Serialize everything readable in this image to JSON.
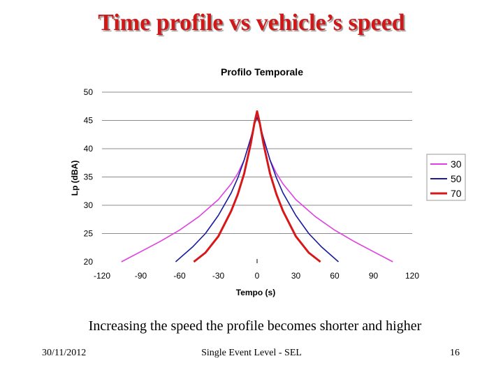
{
  "slide": {
    "title": "Time profile vs vehicle’s speed",
    "caption": "Increasing the speed the profile becomes shorter and higher",
    "footer_date": "30/11/2012",
    "footer_center": "Single Event Level - SEL",
    "footer_page": "16"
  },
  "chart_data": {
    "type": "line",
    "title": "Profilo Temporale",
    "xlabel": "Tempo (s)",
    "ylabel": "Lp (dBA)",
    "xlim": [
      -120,
      120
    ],
    "ylim": [
      20,
      50
    ],
    "xticks": [
      "-120",
      "-90",
      "-60",
      "-30",
      "0",
      "30",
      "60",
      "90",
      "120"
    ],
    "yticks": [
      "20",
      "25",
      "30",
      "35",
      "40",
      "45",
      "50"
    ],
    "grid": "horizontal",
    "legend_position": "right",
    "series": [
      {
        "name": "30",
        "color": "#e040e0",
        "x": [
          -105,
          -90,
          -75,
          -60,
          -45,
          -30,
          -20,
          -15,
          -10,
          -5,
          -2,
          0,
          2,
          5,
          10,
          15,
          20,
          30,
          45,
          60,
          75,
          90,
          105
        ],
        "y": [
          20,
          21.8,
          23.6,
          25.6,
          28.0,
          31.0,
          33.8,
          35.6,
          38.0,
          41.8,
          44.3,
          45.6,
          44.3,
          41.8,
          38.0,
          35.6,
          33.8,
          31.0,
          28.0,
          25.6,
          23.6,
          21.8,
          20
        ]
      },
      {
        "name": "50",
        "color": "#1a1aa0",
        "x": [
          -63,
          -50,
          -40,
          -30,
          -20,
          -15,
          -10,
          -5,
          -2,
          0,
          2,
          5,
          10,
          15,
          20,
          30,
          40,
          50,
          63
        ],
        "y": [
          20,
          22.6,
          25.0,
          28.2,
          32.2,
          34.8,
          38.0,
          41.8,
          44.4,
          45.5,
          44.4,
          41.8,
          38.0,
          34.8,
          32.2,
          28.2,
          25.0,
          22.6,
          20
        ]
      },
      {
        "name": "70",
        "color": "#d81818",
        "x": [
          -49,
          -40,
          -30,
          -20,
          -15,
          -10,
          -5,
          -2,
          0,
          2,
          5,
          10,
          15,
          20,
          30,
          40,
          49
        ],
        "y": [
          20,
          21.6,
          24.5,
          29.0,
          31.9,
          35.6,
          40.8,
          44.6,
          46.6,
          44.6,
          40.8,
          35.6,
          31.9,
          29.0,
          24.5,
          21.6,
          20
        ]
      }
    ]
  }
}
